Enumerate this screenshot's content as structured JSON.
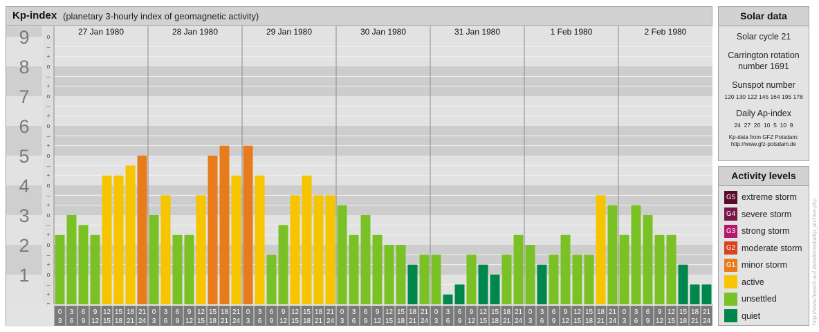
{
  "header": {
    "title": "Kp-index",
    "subtitle": "(planetary 3-hourly index of geomagnetic activity)"
  },
  "chart_data": {
    "type": "bar",
    "ylim": [
      0,
      9
    ],
    "y_ticks": [
      "0",
      "1",
      "2",
      "3",
      "4",
      "5",
      "6",
      "7",
      "8",
      "9"
    ],
    "minor_tick_labels": [
      "–",
      "+",
      "o"
    ],
    "days": [
      "27 Jan 1980",
      "28 Jan 1980",
      "29 Jan 1980",
      "30 Jan 1980",
      "31 Jan 1980",
      "1 Feb 1980",
      "2 Feb 1980"
    ],
    "interval_labels": [
      [
        "0",
        "3"
      ],
      [
        "3",
        "6"
      ],
      [
        "6",
        "9"
      ],
      [
        "9",
        "12"
      ],
      [
        "12",
        "15"
      ],
      [
        "15",
        "18"
      ],
      [
        "18",
        "21"
      ],
      [
        "21",
        "24"
      ]
    ],
    "values": [
      [
        2.333,
        3.0,
        2.667,
        2.333,
        4.333,
        4.333,
        4.667,
        5.0
      ],
      [
        3.0,
        3.667,
        2.333,
        2.333,
        3.667,
        5.0,
        5.333,
        4.333
      ],
      [
        5.333,
        4.333,
        1.667,
        2.667,
        3.667,
        4.333,
        3.667,
        3.667
      ],
      [
        3.333,
        2.333,
        3.0,
        2.333,
        2.0,
        2.0,
        1.333,
        1.667
      ],
      [
        1.667,
        0.333,
        0.667,
        1.667,
        1.333,
        1.0,
        1.667,
        2.333
      ],
      [
        2.0,
        1.333,
        1.667,
        2.333,
        1.667,
        1.667,
        3.667,
        3.333
      ],
      [
        2.333,
        3.333,
        3.0,
        2.333,
        2.333,
        1.333,
        0.667,
        0.667
      ]
    ],
    "grid": true
  },
  "solar": {
    "title": "Solar data",
    "cycle": "Solar cycle 21",
    "carrington_line1": "Carrington rotation",
    "carrington_line2": "number 1691",
    "sunspot_title": "Sunspot number",
    "sunspot_values": "120 130 122 145 164 195 178",
    "ap_title": "Daily Ap-index",
    "ap_values": "24  27  26  10  5  10  9",
    "source_line1": "Kp-data from GFZ Potsdam:",
    "source_line2": "http://www.gfz-potsdam.de"
  },
  "activity": {
    "title": "Activity levels",
    "items": [
      {
        "code": "G5",
        "label": "extreme storm",
        "color": "#5a0a2a"
      },
      {
        "code": "G4",
        "label": "severe storm",
        "color": "#7b1449"
      },
      {
        "code": "G3",
        "label": "strong storm",
        "color": "#b3186e"
      },
      {
        "code": "G2",
        "label": "moderate storm",
        "color": "#d9421f"
      },
      {
        "code": "G1",
        "label": "minor storm",
        "color": "#e87c1a"
      },
      {
        "code": "",
        "label": "active",
        "color": "#f7c400"
      },
      {
        "code": "",
        "label": "unsettled",
        "color": "#7ac126"
      },
      {
        "code": "",
        "label": "quiet",
        "color": "#00874c"
      }
    ]
  },
  "colors": {
    "quiet": "#00874c",
    "unsettled": "#7ac126",
    "active": "#f7c400",
    "minor_storm": "#e87c1a",
    "band_light": "#e2e2e2",
    "band_dark": "#cdcdcd",
    "axis_label_bg": "#7a7a7a"
  },
  "watermark": "http://www.fleusch-auf.de/wikimedia/kp_archive.php"
}
